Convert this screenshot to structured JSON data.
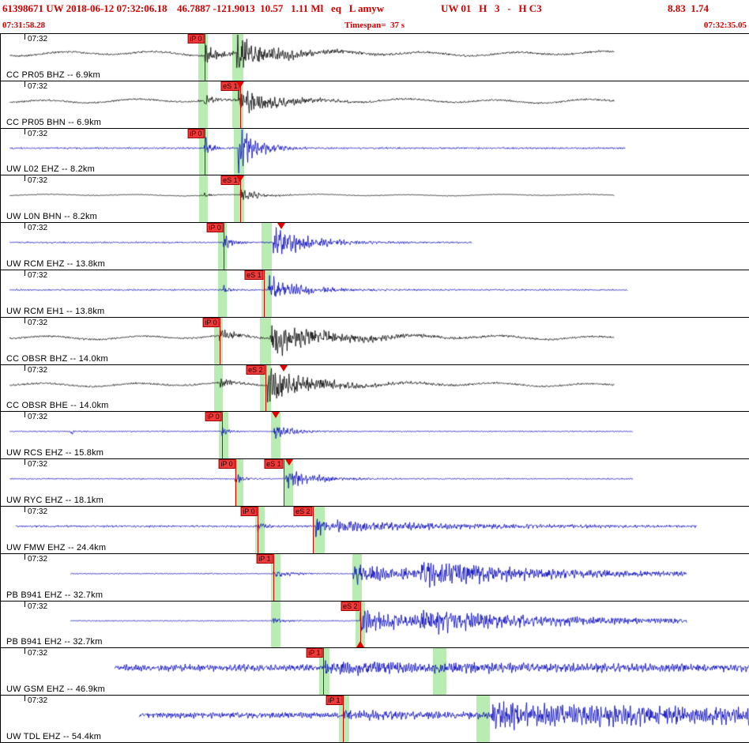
{
  "app": {
    "accent_red": "#d40000",
    "trace_blue": "#0000bb",
    "trace_black": "#000000",
    "band_green": "#b9ecb2",
    "pick_red": "#e40000"
  },
  "header": {
    "fields": [
      "61398671 UW 2018-06-12 07:32:06.18",
      "46.7887 -121.9013  10.57   1.11 Ml   eq   L amyw",
      "UW 01   H   3   -   H C3",
      "8.83  1.74"
    ],
    "start_time": "07:31:58.28",
    "timespan": "Timespan=  37 s",
    "end_time": "07:32:35.05"
  },
  "traces": [
    {
      "time_label": "07:32",
      "station_label": "CC PR05 BHZ -- 6.9km",
      "color": "black",
      "picks": [
        {
          "label": "iP 0",
          "x": 0.272
        }
      ],
      "flags": [],
      "bands": [
        {
          "x": 0.2638,
          "w": 0.0127
        },
        {
          "x": 0.309,
          "w": 0.0148
        }
      ],
      "wave": {
        "start": 0.012,
        "end": 0.82,
        "noise": 0.9,
        "lowfreq": 2.0,
        "seed": 101,
        "bursts": [
          [
            0.272,
            9,
            0.018
          ],
          [
            0.315,
            15,
            0.05
          ]
        ]
      }
    },
    {
      "time_label": "07:32",
      "station_label": "CC PR05 BHN -- 6.9km",
      "color": "black",
      "picks": [
        {
          "label": "eS 1",
          "x": 0.3196
        }
      ],
      "flags": [
        {
          "x": 0.3196,
          "pos": "top"
        }
      ],
      "bands": [
        {
          "x": 0.2638,
          "w": 0.0127
        },
        {
          "x": 0.309,
          "w": 0.0148
        }
      ],
      "wave": {
        "start": 0.012,
        "end": 0.82,
        "noise": 0.8,
        "lowfreq": 1.8,
        "seed": 102,
        "bursts": [
          [
            0.272,
            5,
            0.012
          ],
          [
            0.318,
            13,
            0.045
          ]
        ]
      }
    },
    {
      "time_label": "07:32",
      "station_label": "UW L02 EHZ -- 8.2km",
      "color": "blue",
      "picks": [
        {
          "label": "iP 0",
          "x": 0.272
        }
      ],
      "flags": [],
      "bands": [
        {
          "x": 0.2648,
          "w": 0.0116
        },
        {
          "x": 0.3117,
          "w": 0.0137
        }
      ],
      "wave": {
        "start": 0.012,
        "end": 0.835,
        "noise": 0.8,
        "lowfreq": 0,
        "seed": 103,
        "bursts": [
          [
            0.272,
            11,
            0.008
          ],
          [
            0.317,
            22,
            0.022
          ]
        ]
      }
    },
    {
      "time_label": "07:32",
      "station_label": "UW L0N BHN -- 8.2km",
      "color": "black",
      "picks": [
        {
          "label": "eS 1",
          "x": 0.3196
        }
      ],
      "flags": [
        {
          "x": 0.3196,
          "pos": "top"
        }
      ],
      "bands": [
        {
          "x": 0.2648,
          "w": 0.0116
        },
        {
          "x": 0.3117,
          "w": 0.0137
        }
      ],
      "wave": {
        "start": 0.012,
        "end": 0.82,
        "noise": 0.35,
        "lowfreq": 0.7,
        "seed": 104,
        "bursts": [
          [
            0.272,
            2.5,
            0.008
          ],
          [
            0.32,
            7,
            0.02
          ]
        ]
      }
    },
    {
      "time_label": "07:32",
      "station_label": "UW RCM EHZ -- 13.8km",
      "color": "blue",
      "picks": [
        {
          "label": "iP 0",
          "x": 0.2975
        }
      ],
      "flags": [
        {
          "x": 0.3745,
          "pos": "top"
        }
      ],
      "bands": [
        {
          "x": 0.2901,
          "w": 0.0116
        },
        {
          "x": 0.3481,
          "w": 0.0137
        }
      ],
      "wave": {
        "start": 0.012,
        "end": 0.63,
        "noise": 0.7,
        "lowfreq": 0,
        "seed": 105,
        "bursts": [
          [
            0.2975,
            8,
            0.01
          ],
          [
            0.3639,
            14,
            0.045
          ]
        ]
      }
    },
    {
      "time_label": "07:32",
      "station_label": "UW RCM EH1 -- 13.8km",
      "color": "blue",
      "picks": [
        {
          "label": "eS 1",
          "x": 0.3513
        }
      ],
      "flags": [],
      "bands": [
        {
          "x": 0.2901,
          "w": 0.0116
        },
        {
          "x": 0.3481,
          "w": 0.0137
        }
      ],
      "wave": {
        "start": 0.012,
        "end": 0.838,
        "noise": 0.7,
        "lowfreq": 0,
        "seed": 106,
        "bursts": [
          [
            0.2975,
            4,
            0.008
          ],
          [
            0.357,
            12,
            0.04
          ]
        ]
      }
    },
    {
      "time_label": "07:32",
      "station_label": "CC OBSR BHZ -- 14.0km",
      "color": "black",
      "picks": [
        {
          "label": "iP 0",
          "x": 0.2922
        }
      ],
      "flags": [],
      "bands": [
        {
          "x": 0.2848,
          "w": 0.0116
        },
        {
          "x": 0.346,
          "w": 0.0148
        }
      ],
      "wave": {
        "start": 0.012,
        "end": 0.82,
        "noise": 0.8,
        "lowfreq": 1.8,
        "seed": 107,
        "bursts": [
          [
            0.2922,
            9,
            0.015
          ],
          [
            0.36,
            15,
            0.07
          ]
        ]
      }
    },
    {
      "time_label": "07:32",
      "station_label": "CC OBSR BHE -- 14.0km",
      "color": "black",
      "picks": [
        {
          "label": "eS 2",
          "x": 0.3534
        }
      ],
      "flags": [
        {
          "x": 0.3776,
          "pos": "top"
        }
      ],
      "bands": [
        {
          "x": 0.2848,
          "w": 0.0116
        },
        {
          "x": 0.346,
          "w": 0.0148
        }
      ],
      "wave": {
        "start": 0.012,
        "end": 0.82,
        "noise": 0.8,
        "lowfreq": 1.8,
        "seed": 108,
        "bursts": [
          [
            0.2922,
            5,
            0.012
          ],
          [
            0.3565,
            16,
            0.055
          ]
        ]
      }
    },
    {
      "time_label": "07:32",
      "station_label": "UW RCS EHZ -- 15.8km",
      "color": "blue",
      "picks": [
        {
          "label": "iP 0",
          "x": 0.2954
        }
      ],
      "flags": [
        {
          "x": 0.3671,
          "pos": "top"
        }
      ],
      "bands": [
        {
          "x": 0.2911,
          "w": 0.0127
        },
        {
          "x": 0.3608,
          "w": 0.0127
        }
      ],
      "wave": {
        "start": 0.012,
        "end": 0.845,
        "noise": 0.55,
        "lowfreq": 0,
        "seed": 109,
        "bursts": [
          [
            0.0928,
            9,
            0.0018
          ],
          [
            0.2954,
            5,
            0.007
          ],
          [
            0.3639,
            9,
            0.02
          ]
        ]
      }
    },
    {
      "time_label": "07:32",
      "station_label": "UW RYC EHZ -- 18.1km",
      "color": "blue",
      "picks": [
        {
          "label": "iP 0",
          "x": 0.3133
        },
        {
          "label": "eS 1",
          "x": 0.3776
        }
      ],
      "flags": [
        {
          "x": 0.385,
          "pos": "top"
        }
      ],
      "bands": [
        {
          "x": 0.3123,
          "w": 0.0116
        },
        {
          "x": 0.3787,
          "w": 0.0116
        }
      ],
      "wave": {
        "start": 0.012,
        "end": 0.845,
        "noise": 0.55,
        "lowfreq": 0,
        "seed": 110,
        "bursts": [
          [
            0.3133,
            6,
            0.008
          ],
          [
            0.3808,
            10,
            0.035
          ]
        ]
      }
    },
    {
      "time_label": "07:32",
      "station_label": "UW FMW EHZ -- 24.4km",
      "color": "blue",
      "picks": [
        {
          "label": "iP 0",
          "x": 0.3428
        },
        {
          "label": "eS 2",
          "x": 0.4167
        }
      ],
      "flags": [],
      "bands": [
        {
          "x": 0.3397,
          "w": 0.0127
        },
        {
          "x": 0.4178,
          "w": 0.0148
        }
      ],
      "wave": {
        "start": 0.02,
        "end": 0.93,
        "noise": 0.9,
        "lowfreq": 0,
        "seed": 111,
        "bursts": [
          [
            0.3428,
            5,
            0.008
          ],
          [
            0.4209,
            11,
            0.012
          ],
          [
            0.45,
            4.5,
            0.17
          ]
        ]
      }
    },
    {
      "time_label": "07:32",
      "station_label": "PB B941 EHZ -- 32.7km",
      "color": "blue",
      "picks": [
        {
          "label": "iP 1",
          "x": 0.3639
        }
      ],
      "flags": [],
      "bands": [
        {
          "x": 0.3608,
          "w": 0.0127
        },
        {
          "x": 0.4704,
          "w": 0.0127
        }
      ],
      "wave": {
        "start": 0.093,
        "end": 0.917,
        "noise": 0.5,
        "lowfreq": 0,
        "seed": 112,
        "bursts": [
          [
            0.3639,
            4,
            0.02
          ],
          [
            0.47,
            10,
            0.09
          ],
          [
            0.56,
            8,
            0.22
          ]
        ]
      }
    },
    {
      "time_label": "07:32",
      "station_label": "PB B941 EH2 -- 32.7km",
      "color": "blue",
      "picks": [
        {
          "label": "eS 2",
          "x": 0.48
        }
      ],
      "flags": [
        {
          "x": 0.48,
          "pos": "bottom"
        }
      ],
      "bands": [
        {
          "x": 0.3608,
          "w": 0.0127
        },
        {
          "x": 0.4746,
          "w": 0.0127
        }
      ],
      "wave": {
        "start": 0.093,
        "end": 0.917,
        "noise": 0.5,
        "lowfreq": 0,
        "seed": 113,
        "bursts": [
          [
            0.3639,
            2.5,
            0.012
          ],
          [
            0.48,
            11,
            0.09
          ],
          [
            0.56,
            7,
            0.25
          ]
        ]
      }
    },
    {
      "time_label": "07:32",
      "station_label": "UW GSM EHZ -- 46.9km",
      "color": "blue",
      "picks": [
        {
          "label": "iP 1",
          "x": 0.4304
        }
      ],
      "flags": [],
      "bands": [
        {
          "x": 0.4251,
          "w": 0.0137
        },
        {
          "x": 0.5781,
          "w": 0.0179
        }
      ],
      "wave": {
        "start": 0.152,
        "end": 1.0,
        "noise": 3.0,
        "lowfreq": 0,
        "seed": 114,
        "bursts": [
          [
            0.4304,
            4,
            0.25
          ]
        ]
      }
    },
    {
      "time_label": "07:32",
      "station_label": "UW TDL EHZ -- 54.4km",
      "color": "blue",
      "picks": [
        {
          "label": "iP 1",
          "x": 0.4568
        }
      ],
      "flags": [],
      "bands": [
        {
          "x": 0.4515,
          "w": 0.0137
        },
        {
          "x": 0.6361,
          "w": 0.0179
        }
      ],
      "wave": {
        "start": 0.185,
        "end": 1.0,
        "noise": 2.6,
        "lowfreq": 0,
        "seed": 115,
        "bursts": [
          [
            0.4568,
            2.5,
            0.12
          ],
          [
            0.655,
            9,
            0.6
          ]
        ]
      }
    }
  ]
}
